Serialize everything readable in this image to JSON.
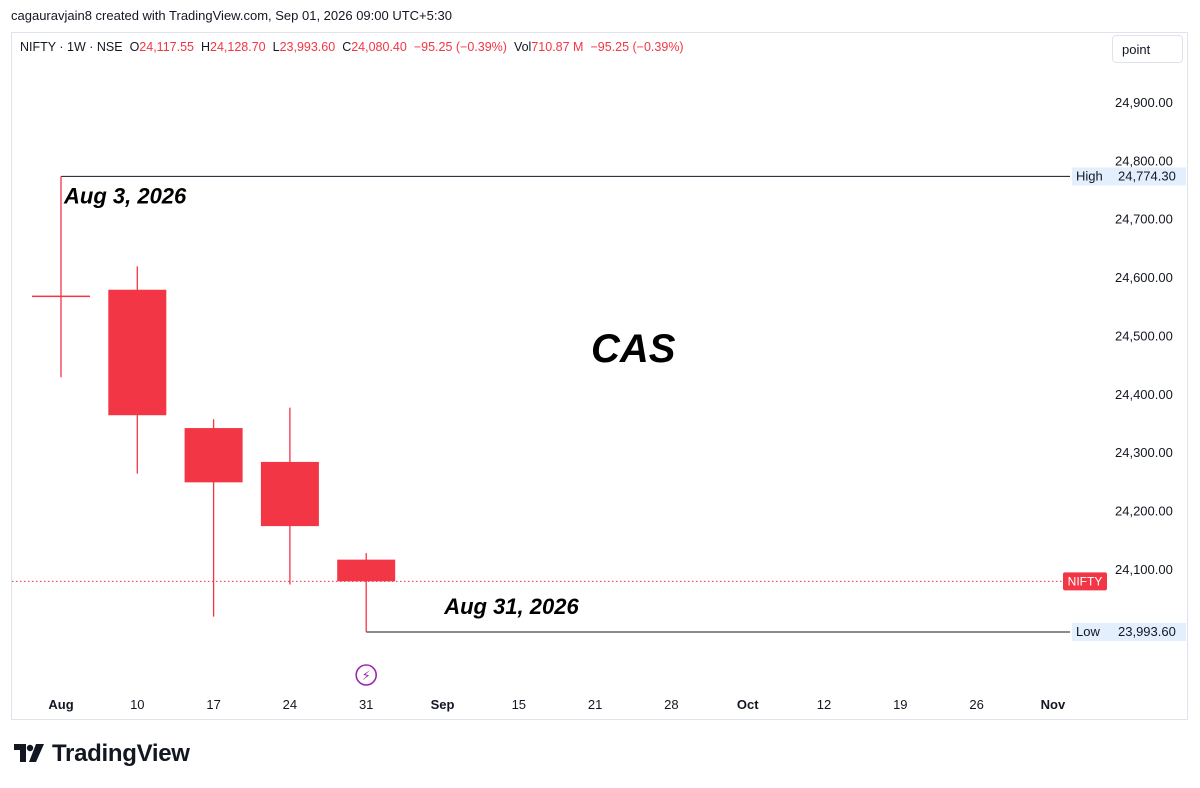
{
  "attribution": "cagauravjain8 created with TradingView.com, Sep 01, 2026 09:00 UTC+5:30",
  "legend": {
    "symbol": "NIFTY · 1W · NSE",
    "open_label": "O",
    "open": "24,117.55",
    "high_label": "H",
    "high": "24,128.70",
    "low_label": "L",
    "low": "23,993.60",
    "close_label": "C",
    "close": "24,080.40",
    "change": "−95.25 (−0.39%)",
    "vol_label": "Vol",
    "vol": "710.87 M",
    "vol_change": "−95.25 (−0.39%)"
  },
  "scale_mode": "point",
  "brand": "TradingView",
  "colors": {
    "bearish": "#f23645",
    "text": "#131722",
    "label_bg": "#e3effd",
    "event": "#9c27b0"
  },
  "chart_data": {
    "type": "candlestick",
    "yaxis": {
      "ticks": [
        24900,
        24800,
        24700,
        24600,
        24500,
        24400,
        24300,
        24200,
        24100,
        24000
      ],
      "tick_labels": [
        "24,900.00",
        "24,800.00",
        "24,700.00",
        "24,600.00",
        "24,500.00",
        "24,400.00",
        "24,300.00",
        "24,200.00",
        "24,100.00",
        "24,000.00"
      ],
      "range": [
        23880,
        25000
      ]
    },
    "xaxis": {
      "labels": [
        "Aug",
        "10",
        "17",
        "24",
        "31",
        "Sep",
        "15",
        "21",
        "28",
        "Oct",
        "12",
        "19",
        "26",
        "Nov"
      ],
      "bold": [
        "Aug",
        "Sep",
        "Oct",
        "Nov"
      ]
    },
    "candles": [
      {
        "slot": 0,
        "open": 24570,
        "high": 24774.3,
        "low": 24430,
        "close": 24568
      },
      {
        "slot": 1,
        "open": 24580,
        "high": 24620,
        "low": 24265,
        "close": 24365
      },
      {
        "slot": 2,
        "open": 24343,
        "high": 24358,
        "low": 24020,
        "close": 24250
      },
      {
        "slot": 3,
        "open": 24285,
        "high": 24378,
        "low": 24075,
        "close": 24175
      },
      {
        "slot": 4,
        "open": 24117.55,
        "high": 24128.7,
        "low": 23993.6,
        "close": 24080.4
      }
    ],
    "current_price": 24080.4,
    "current_label": "NIFTY",
    "high_line": {
      "label": "High",
      "value": 24774.3,
      "text": "24,774.30",
      "start_slot": 0
    },
    "low_line": {
      "label": "Low",
      "value": 23993.6,
      "text": "23,993.60",
      "start_slot": 4
    },
    "annotations": [
      {
        "text": "Aug 3, 2026",
        "slot": 0,
        "value": 24774.3,
        "anchor": "below-right"
      },
      {
        "text": "Aug 31, 2026",
        "slot": 4,
        "value": 23993.6,
        "anchor": "above-right"
      },
      {
        "text": "CAS",
        "slot": 7.5,
        "value": 24480,
        "anchor": "center-large"
      }
    ],
    "event_marker": {
      "slot": 4,
      "glyph": "⚡"
    }
  }
}
